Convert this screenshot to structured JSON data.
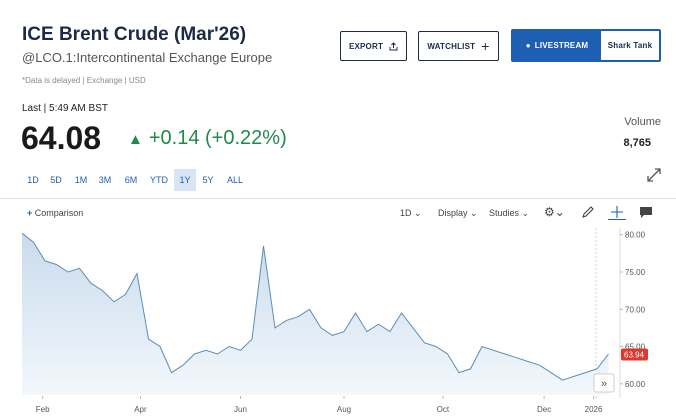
{
  "header": {
    "title": "ICE Brent Crude (Mar'26)",
    "subtitle": "@LCO.1:Intercontinental Exchange Europe",
    "note": "*Data is delayed | Exchange | USD"
  },
  "buttons": {
    "export": "EXPORT",
    "watchlist": "WATCHLIST",
    "livestream": "LIVESTREAM",
    "show": "Shark Tank"
  },
  "quote": {
    "last": "Last | 5:49 AM BST",
    "price": "64.08",
    "change": "+0.14 (+0.22%)",
    "volume_label": "Volume",
    "volume": "8,765"
  },
  "ranges": [
    "1D",
    "5D",
    "1M",
    "3M",
    "6M",
    "YTD",
    "1Y",
    "5Y",
    "ALL"
  ],
  "toolbar": {
    "comparison": "Comparison",
    "interval": "1D",
    "display": "Display",
    "studies": "Studies"
  },
  "chart_data": {
    "type": "area",
    "color": "#5b8db8",
    "x": [
      0,
      1,
      2,
      3,
      4,
      5,
      6,
      7,
      8,
      9,
      10,
      11,
      12,
      13,
      14,
      15,
      16,
      17,
      18,
      19,
      20,
      21,
      22,
      23,
      24,
      25,
      26,
      27,
      28,
      29,
      30,
      31,
      32,
      33,
      34,
      35,
      36,
      37,
      38,
      39,
      40,
      41,
      42,
      43,
      44,
      45,
      46,
      47,
      48,
      49,
      50,
      51
    ],
    "values": [
      80.2,
      79,
      76.5,
      76,
      75,
      75.5,
      73.5,
      72.5,
      71,
      72,
      74.8,
      66,
      65,
      61.5,
      62.5,
      64,
      64.5,
      64,
      65,
      64.5,
      66,
      78.5,
      67.5,
      68.5,
      69,
      70,
      67.5,
      66.5,
      67,
      69.5,
      67,
      68,
      67,
      69.5,
      67.5,
      65.5,
      65,
      64,
      61.5,
      62,
      65,
      64.5,
      64,
      63.5,
      63,
      62.5,
      61.5,
      60.5,
      61,
      61.5,
      62,
      64
    ],
    "xlim": [
      0,
      52
    ],
    "ylim": [
      58.5,
      80.9
    ],
    "xticks": [
      {
        "value": 1.8,
        "label": "Feb"
      },
      {
        "value": 10.3,
        "label": "Apr"
      },
      {
        "value": 19,
        "label": "Jun"
      },
      {
        "value": 28,
        "label": "Aug"
      },
      {
        "value": 36.6,
        "label": "Oct"
      },
      {
        "value": 45.4,
        "label": "Dec"
      },
      {
        "value": 49.7,
        "label": "2026"
      }
    ],
    "yticks": [
      {
        "value": 80,
        "label": "80.00"
      },
      {
        "value": 75,
        "label": "75.00"
      },
      {
        "value": 70,
        "label": "70.00"
      },
      {
        "value": 65,
        "label": "65.00"
      },
      {
        "value": 60,
        "label": "60.00"
      }
    ],
    "last_value": 63.94
  }
}
